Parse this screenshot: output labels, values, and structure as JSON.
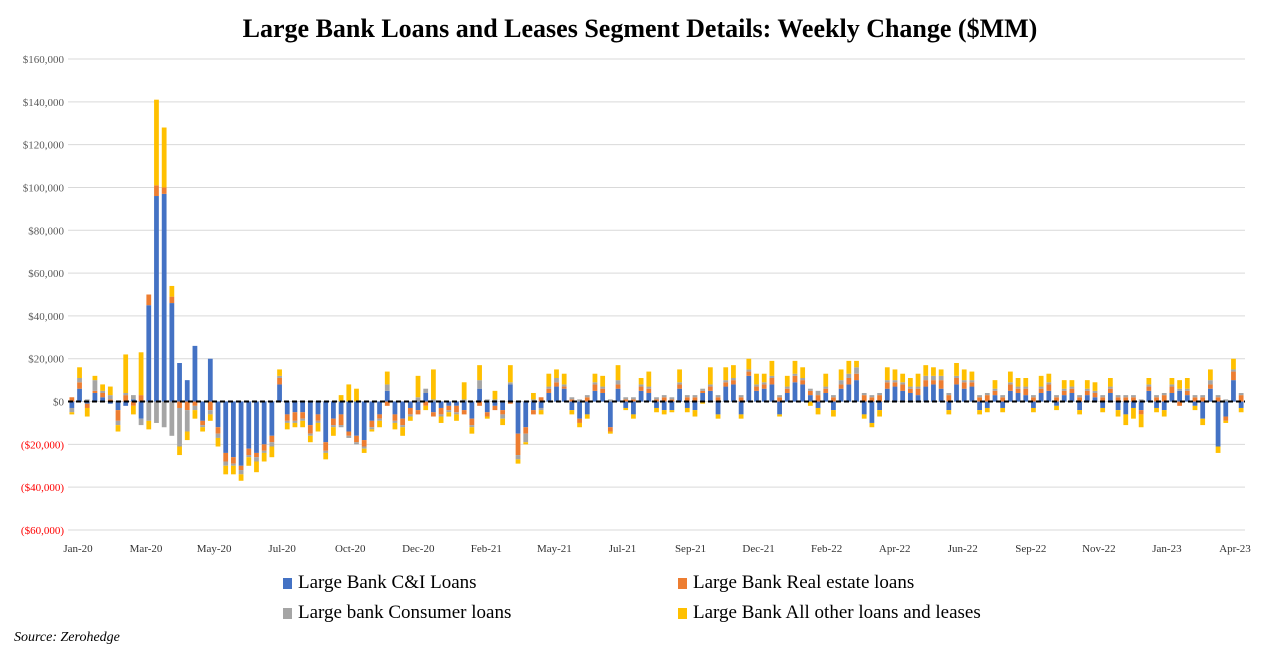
{
  "chart_data": {
    "type": "bar",
    "stacked": true,
    "title": "Large Bank Loans and Leases Segment Details: Weekly Change ($MM)",
    "ylim": [
      -60000,
      160000
    ],
    "ytick_values": [
      160000,
      140000,
      120000,
      100000,
      80000,
      60000,
      40000,
      20000,
      0,
      -20000,
      -40000,
      -60000
    ],
    "ytick_labels": [
      "$160,000",
      "$140,000",
      "$120,000",
      "$100,000",
      "$80,000",
      "$60,000",
      "$40,000",
      "$20,000",
      "$0",
      "($20,000)",
      "($40,000)",
      "($60,000)"
    ],
    "negative_tick_color": "#ff0000",
    "grid": true,
    "zero_line": "dashed-black",
    "xtick_labels": [
      "Jan-20",
      "Mar-20",
      "May-20",
      "Jul-20",
      "Oct-20",
      "Dec-20",
      "Feb-21",
      "May-21",
      "Jul-21",
      "Sep-21",
      "Dec-21",
      "Feb-22",
      "Apr-22",
      "Jun-22",
      "Sep-22",
      "Nov-22",
      "Jan-23",
      "Apr-23"
    ],
    "legend_position": "bottom",
    "series": [
      {
        "name": "Large Bank C&I Loans",
        "color": "#4472c4",
        "values": [
          -3000,
          6000,
          -1000,
          4000,
          2000,
          -1000,
          -4000,
          -2000,
          1000,
          -8000,
          45000,
          96000,
          97000,
          46000,
          18000,
          10000,
          26000,
          -9000,
          20000,
          -12000,
          -24000,
          -26000,
          -30000,
          -22000,
          -24000,
          -20000,
          -16000,
          8000,
          -6000,
          -5000,
          -5000,
          -11000,
          -6000,
          -19000,
          -8000,
          -6000,
          -14000,
          -16000,
          -18000,
          -9000,
          -6000,
          5000,
          -6000,
          -8000,
          -3000,
          -4000,
          4000,
          -5000,
          -3000,
          -2000,
          -2000,
          -4000,
          -8000,
          6000,
          -5000,
          -2000,
          -4000,
          8000,
          -15000,
          -12000,
          -4000,
          -3000,
          4000,
          7000,
          6000,
          -4000,
          -8000,
          -6000,
          5000,
          4000,
          -12000,
          6000,
          -3000,
          -6000,
          5000,
          4000,
          -3000,
          -4000,
          -4000,
          6000,
          -3000,
          -4000,
          4000,
          5000,
          -6000,
          7000,
          8000,
          -6000,
          12000,
          5000,
          6000,
          8000,
          -6000,
          4000,
          9000,
          8000,
          3000,
          -3000,
          4000,
          -4000,
          6000,
          8000,
          10000,
          -6000,
          -10000,
          -4000,
          6000,
          7000,
          5000,
          4000,
          3000,
          7000,
          8000,
          6000,
          -4000,
          8000,
          6000,
          7000,
          -4000,
          -3000,
          3000,
          -3000,
          5000,
          4000,
          3000,
          -3000,
          4000,
          5000,
          -2000,
          3000,
          4000,
          -4000,
          3000,
          2000,
          -3000,
          4000,
          -4000,
          -6000,
          -3000,
          -4000,
          5000,
          -3000,
          -4000,
          4000,
          5000,
          3000,
          -2000,
          -8000,
          6000,
          -21000,
          -7000,
          10000,
          -3000
        ]
      },
      {
        "name": "Large Bank Real estate loans",
        "color": "#ed7d31",
        "values": [
          2000,
          3000,
          -2000,
          1000,
          2000,
          1000,
          -5000,
          3000,
          -2000,
          3000,
          5000,
          5000,
          3000,
          3000,
          -3000,
          -4000,
          -2000,
          -2000,
          -4000,
          -3000,
          -4000,
          -3000,
          -2000,
          -3000,
          -2000,
          -3000,
          -3000,
          3000,
          -3000,
          -4000,
          -3000,
          -4000,
          -3000,
          -4000,
          -3000,
          -5000,
          -2000,
          -3000,
          -3000,
          -3000,
          -2000,
          -2000,
          -3000,
          -3000,
          -3000,
          -2000,
          -2000,
          -2000,
          -3000,
          -2000,
          -3000,
          -2000,
          -3000,
          -2000,
          -2000,
          -2000,
          -2000,
          -1000,
          -10000,
          -3000,
          -2000,
          2000,
          2000,
          2000,
          1000,
          1000,
          -2000,
          2000,
          3000,
          2000,
          -2000,
          2000,
          1000,
          1000,
          2000,
          2000,
          1000,
          2000,
          1000,
          2000,
          2000,
          2000,
          1000,
          2000,
          2000,
          2000,
          2000,
          2000,
          2000,
          2000,
          2000,
          3000,
          2000,
          2000,
          3000,
          2000,
          2000,
          3000,
          2000,
          2000,
          2000,
          3000,
          3000,
          3000,
          2000,
          3000,
          3000,
          2000,
          3000,
          2000,
          3000,
          3000,
          2000,
          4000,
          3000,
          3000,
          3000,
          2000,
          2000,
          3000,
          2000,
          2000,
          3000,
          2000,
          3000,
          2000,
          2000,
          3000,
          2000,
          2000,
          2000,
          2000,
          2000,
          2000,
          2000,
          2000,
          2000,
          2000,
          2000,
          -2000,
          2000,
          2000,
          3000,
          3000,
          -2000,
          2000,
          2000,
          2000,
          2000,
          2000,
          -2000,
          4000,
          3000,
          3000,
          4000,
          3000,
          2000,
          3000
        ]
      },
      {
        "name": "Large bank Consumer loans",
        "color": "#a5a5a5",
        "values": [
          -2000,
          2000,
          1000,
          5000,
          1000,
          2000,
          -2000,
          1000,
          2000,
          -3000,
          -9000,
          -10000,
          -12000,
          -16000,
          -18000,
          -10000,
          -2000,
          -1000,
          -2000,
          -2000,
          -2000,
          -1000,
          -2000,
          -1000,
          -2000,
          -1000,
          -2000,
          1000,
          -1000,
          -1000,
          -1000,
          -1000,
          -1000,
          -1000,
          -1000,
          -1000,
          -1000,
          -1000,
          -1000,
          -1000,
          -1000,
          3000,
          -1000,
          -1000,
          -1000,
          2000,
          2000,
          1000,
          -1000,
          -1000,
          -1000,
          1000,
          -1000,
          4000,
          1000,
          1000,
          -2000,
          1000,
          -2000,
          -4000,
          1000,
          -1000,
          1000,
          2000,
          1000,
          1000,
          1000,
          1000,
          1000,
          1000,
          1000,
          2000,
          1000,
          1000,
          1000,
          1000,
          1000,
          1000,
          1000,
          1000,
          1000,
          1000,
          1000,
          1000,
          1000,
          1000,
          1000,
          1000,
          1000,
          1000,
          1000,
          1000,
          1000,
          1000,
          1000,
          1000,
          1000,
          2000,
          1000,
          1000,
          2000,
          2000,
          3000,
          1000,
          1000,
          1000,
          1000,
          1000,
          1000,
          1000,
          1000,
          2000,
          2000,
          2000,
          1000,
          1000,
          1000,
          1000,
          1000,
          1000,
          1000,
          1000,
          1000,
          1000,
          1000,
          1000,
          1000,
          1000,
          1000,
          1000,
          1000,
          1000,
          1000,
          1000,
          1000,
          1000,
          1000,
          1000,
          1000,
          1000,
          1000,
          1000,
          1000,
          1000,
          1000,
          1000,
          1000,
          1000,
          2000,
          1000,
          1000,
          1000,
          1000,
          1000,
          1000,
          1000
        ]
      },
      {
        "name": "Large Bank All other loans and leases",
        "color": "#ffc000",
        "values": [
          -1000,
          5000,
          -4000,
          2000,
          3000,
          4000,
          -3000,
          18000,
          -4000,
          20000,
          -4000,
          40000,
          28000,
          5000,
          -4000,
          -4000,
          -4000,
          -2000,
          -3000,
          -4000,
          -4000,
          -4000,
          -3000,
          -4000,
          -5000,
          -4000,
          -5000,
          3000,
          -3000,
          -2000,
          -3000,
          -3000,
          -4000,
          -3000,
          -4000,
          3000,
          8000,
          6000,
          -2000,
          -1000,
          -3000,
          6000,
          -3000,
          -4000,
          -2000,
          10000,
          -2000,
          14000,
          -3000,
          -2000,
          -3000,
          8000,
          -3000,
          7000,
          -1000,
          4000,
          -3000,
          8000,
          -2000,
          -1000,
          3000,
          -2000,
          6000,
          4000,
          5000,
          -2000,
          -2000,
          -2000,
          4000,
          5000,
          -1000,
          7000,
          -1000,
          -2000,
          3000,
          7000,
          -2000,
          -2000,
          -1000,
          6000,
          -2000,
          -3000,
          -1000,
          8000,
          -2000,
          6000,
          6000,
          -2000,
          5000,
          5000,
          4000,
          7000,
          -1000,
          5000,
          6000,
          5000,
          -2000,
          -3000,
          6000,
          -3000,
          5000,
          6000,
          3000,
          -2000,
          -2000,
          -3000,
          6000,
          5000,
          4000,
          4000,
          6000,
          5000,
          4000,
          3000,
          -2000,
          6000,
          5000,
          4000,
          -2000,
          -2000,
          4000,
          -2000,
          5000,
          4000,
          4000,
          -2000,
          5000,
          4000,
          -2000,
          4000,
          3000,
          -2000,
          4000,
          4000,
          -2000,
          4000,
          -3000,
          -5000,
          -5000,
          -6000,
          3000,
          -2000,
          -3000,
          3000,
          4000,
          5000,
          -2000,
          -3000,
          5000,
          -3000,
          -1000,
          5000,
          -2000
        ]
      }
    ],
    "source": "Source: Zerohedge"
  }
}
